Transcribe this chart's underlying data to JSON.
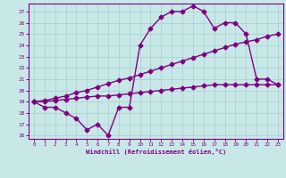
{
  "line1_x": [
    0,
    1,
    2,
    3,
    4,
    5,
    6,
    7,
    8,
    9,
    10,
    11,
    12,
    13,
    14,
    15,
    16,
    17,
    18,
    19,
    20,
    21,
    22,
    23
  ],
  "line1_y": [
    19.0,
    18.5,
    18.5,
    18.0,
    17.5,
    16.5,
    17.0,
    16.0,
    18.5,
    18.5,
    24.0,
    25.5,
    26.5,
    27.0,
    27.0,
    27.5,
    27.0,
    25.5,
    26.0,
    26.0,
    25.0,
    21.0,
    21.0,
    20.5
  ],
  "line2_x": [
    0,
    1,
    2,
    3,
    4,
    5,
    6,
    7,
    8,
    9,
    10,
    11,
    12,
    13,
    14,
    15,
    16,
    17,
    18,
    19,
    20,
    21,
    22,
    23
  ],
  "line2_y": [
    19.0,
    19.0,
    19.1,
    19.2,
    19.3,
    19.4,
    19.5,
    19.5,
    19.6,
    19.7,
    19.8,
    19.9,
    20.0,
    20.1,
    20.2,
    20.3,
    20.4,
    20.5,
    20.5,
    20.5,
    20.5,
    20.5,
    20.5,
    20.5
  ],
  "line3_x": [
    0,
    1,
    2,
    3,
    4,
    5,
    6,
    7,
    8,
    9,
    10,
    11,
    12,
    13,
    14,
    15,
    16,
    17,
    18,
    19,
    20,
    21,
    22,
    23
  ],
  "line3_y": [
    19.0,
    19.1,
    19.3,
    19.5,
    19.8,
    20.0,
    20.3,
    20.6,
    20.9,
    21.1,
    21.4,
    21.7,
    22.0,
    22.3,
    22.6,
    22.9,
    23.2,
    23.5,
    23.8,
    24.1,
    24.3,
    24.5,
    24.8,
    25.0
  ],
  "color": "#800080",
  "bg_color": "#c8e8e8",
  "grid_color": "#a8cece",
  "xlim": [
    -0.5,
    23.5
  ],
  "ylim": [
    15.7,
    27.7
  ],
  "yticks": [
    16,
    17,
    18,
    19,
    20,
    21,
    22,
    23,
    24,
    25,
    26,
    27
  ],
  "xticks": [
    0,
    1,
    2,
    3,
    4,
    5,
    6,
    7,
    8,
    9,
    10,
    11,
    12,
    13,
    14,
    15,
    16,
    17,
    18,
    19,
    20,
    21,
    22,
    23
  ],
  "xlabel": "Windchill (Refroidissement éolien,°C)",
  "marker": "D",
  "markersize": 2.5,
  "linewidth": 1.0
}
